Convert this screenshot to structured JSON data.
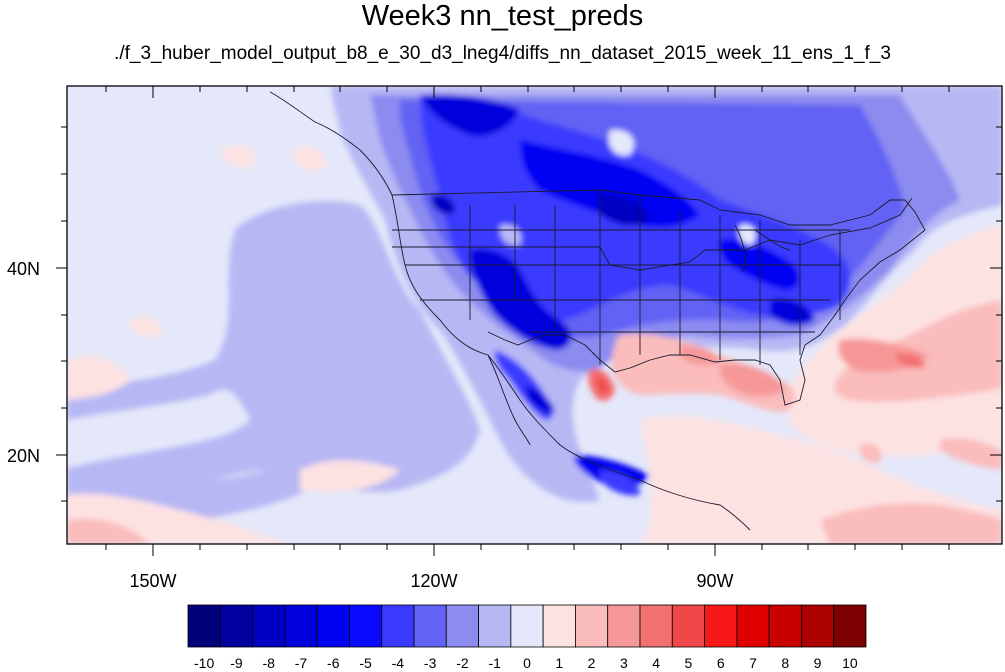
{
  "title": "Week3 nn_test_preds",
  "subtitle": "./f_3_huber_model_output_b8_e_30_d3_lneg4/diffs_nn_dataset_2015_week_11_ens_1_f_3",
  "map": {
    "lon_range": [
      -161,
      -61
    ],
    "lat_range": [
      11,
      57
    ],
    "lon_ticks": [
      {
        "value": -150,
        "label": "150W"
      },
      {
        "value": -120,
        "label": "120W"
      },
      {
        "value": -90,
        "label": "90W"
      }
    ],
    "lat_ticks": [
      {
        "value": 40,
        "label": "40N"
      },
      {
        "value": 20,
        "label": "20N"
      }
    ]
  },
  "colorbar": {
    "labels": [
      "-10",
      "-9",
      "-8",
      "-7",
      "-6",
      "-5",
      "-4",
      "-3",
      "-2",
      "-1",
      "0",
      "1",
      "2",
      "3",
      "4",
      "5",
      "6",
      "7",
      "8",
      "9",
      "10"
    ],
    "colors": [
      "#00007a",
      "#0000a0",
      "#0000c2",
      "#0000dc",
      "#0000f2",
      "#0a0aff",
      "#3a3aff",
      "#6262f4",
      "#8b8bf0",
      "#b7b7f4",
      "#e4e8fa",
      "#fde2e2",
      "#fbbcbc",
      "#f69898",
      "#f37070",
      "#f04848",
      "#f81818",
      "#e00000",
      "#c80000",
      "#aa0000",
      "#7c0000"
    ]
  }
}
